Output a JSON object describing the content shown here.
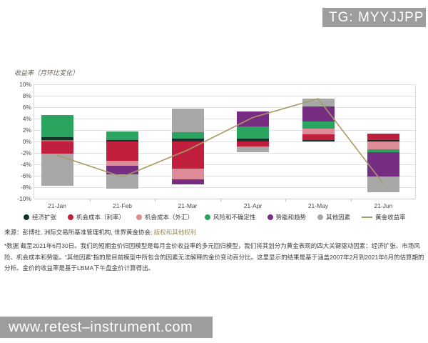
{
  "watermarks": {
    "tg_badge": "TG: MYYJJPP",
    "site_bar": "www.retest–instrument.com"
  },
  "chart": {
    "axis_title": "收益率（月环比变化）"
  },
  "chart_data": {
    "type": "bar",
    "subtype": "stacked-bars-with-line",
    "title": "",
    "ylabel": "收益率（月环比变化）",
    "ylim": [
      -10,
      10
    ],
    "y_tick_step": 2,
    "y_tick_labels": [
      "10%",
      "8%",
      "6%",
      "4%",
      "2%",
      "0%",
      "-2%",
      "-4%",
      "-6%",
      "-8%",
      "-10%"
    ],
    "grid": true,
    "categories": [
      "21-Jan",
      "21-Feb",
      "21-Mar",
      "21-Apr",
      "21-May",
      "21-Jun"
    ],
    "series_colors": {
      "经济扩张": "#12352b",
      "机会成本（利率）": "#c11f3e",
      "机会成本（外汇）": "#dd8b97",
      "风险和不确定性": "#2aa45e",
      "势能和趋势": "#772d82",
      "其他因素": "#a8a8a8"
    },
    "bars": [
      {
        "category": "21-Jan",
        "segments": [
          {
            "series": "机会成本（外汇）",
            "from": 0,
            "to": 0.25,
            "color": "#8f7a63"
          },
          {
            "series": "经济扩张",
            "from": 0.25,
            "to": 0.7
          },
          {
            "series": "风险和不确定性",
            "from": 0.7,
            "to": 4.6
          },
          {
            "series": "机会成本（利率）",
            "from": 0,
            "to": -2.1
          },
          {
            "series": "其他因素",
            "from": -2.1,
            "to": -7.7
          }
        ]
      },
      {
        "category": "21-Feb",
        "segments": [
          {
            "series": "经济扩张",
            "from": 0,
            "to": 0.3
          },
          {
            "series": "风险和不确定性",
            "from": 0.3,
            "to": 1.8
          },
          {
            "series": "机会成本（利率）",
            "from": 0,
            "to": -3.4
          },
          {
            "series": "机会成本（外汇）",
            "from": -3.4,
            "to": -4.3
          },
          {
            "series": "势能和趋势",
            "from": -4.3,
            "to": -5.7
          },
          {
            "series": "其他因素",
            "from": -5.7,
            "to": -8.2
          }
        ]
      },
      {
        "category": "21-Mar",
        "segments": [
          {
            "series": "经济扩张",
            "from": 0,
            "to": 0.55
          },
          {
            "series": "风险和不确定性",
            "from": 0.55,
            "to": 1.65
          },
          {
            "series": "其他因素",
            "from": 1.65,
            "to": 5.8
          },
          {
            "series": "机会成本（利率）",
            "from": 0,
            "to": -4.7
          },
          {
            "series": "机会成本（外汇）",
            "from": -4.7,
            "to": -6.6
          },
          {
            "series": "势能和趋势",
            "from": -6.6,
            "to": -7.5
          }
        ]
      },
      {
        "category": "21-Apr",
        "segments": [
          {
            "series": "经济扩张",
            "from": 0,
            "to": 0.45
          },
          {
            "series": "风险和不确定性",
            "from": 0.45,
            "to": 2.65
          },
          {
            "series": "势能和趋势",
            "from": 2.65,
            "to": 5.25
          },
          {
            "series": "机会成本（利率）",
            "from": 0,
            "to": -0.85
          },
          {
            "series": "其他因素",
            "from": -0.85,
            "to": -1.9
          }
        ]
      },
      {
        "category": "21-May",
        "segments": [
          {
            "series": "经济扩张",
            "from": 0,
            "to": 0.25
          },
          {
            "series": "机会成本（利率）",
            "from": 0.25,
            "to": 1.2
          },
          {
            "series": "机会成本（外汇）",
            "from": 1.2,
            "to": 2.25
          },
          {
            "series": "风险和不确定性",
            "from": 2.25,
            "to": 3.5
          },
          {
            "series": "势能和趋势",
            "from": 3.5,
            "to": 6.1
          },
          {
            "series": "其他因素",
            "from": 6.1,
            "to": 7.5
          }
        ]
      },
      {
        "category": "21-Jun",
        "segments": [
          {
            "series": "经济扩张",
            "from": 0,
            "to": 0.25
          },
          {
            "series": "机会成本（利率）",
            "from": 0.25,
            "to": 1.4
          },
          {
            "series": "机会成本（外汇）",
            "from": 0,
            "to": -1.4
          },
          {
            "series": "风险和不确定性",
            "from": -1.4,
            "to": -1.9
          },
          {
            "series": "势能和趋势",
            "from": -1.9,
            "to": -6.1
          },
          {
            "series": "其他因素",
            "from": -6.1,
            "to": -8.9
          }
        ]
      }
    ],
    "line": {
      "name": "黄金收益率",
      "color": "#a89a64",
      "values": [
        -2.4,
        -6.2,
        -1.5,
        4.2,
        7.5,
        -7.4
      ]
    },
    "legend_position": "bottom"
  },
  "legend": {
    "items": [
      {
        "label": "经济扩张",
        "color": "#12352b",
        "marker": "dot"
      },
      {
        "label": "机会成本（利率）",
        "color": "#c11f3e",
        "marker": "dot"
      },
      {
        "label": "机会成本（外汇）",
        "color": "#dd8b97",
        "marker": "dot"
      },
      {
        "label": "风险和不确定性",
        "color": "#2aa45e",
        "marker": "dot"
      },
      {
        "label": "势能和趋势",
        "color": "#772d82",
        "marker": "dot"
      },
      {
        "label": "其他因素",
        "color": "#a8a8a8",
        "marker": "dot"
      },
      {
        "label": "黄金收益率",
        "color": "#a89a64",
        "marker": "line"
      }
    ]
  },
  "source": {
    "prefix": "来源：",
    "text": "彭博社, 洲际交易所基准管理机构, 世界黄金协会; ",
    "rights_link": "版权和其他权利"
  },
  "footnote": {
    "lines": [
      "*数据 截至2021年6月30日。我们的短期金价归因模型是每月金价收益率的多元回归模型，我们将其划分为黄金表现的四大关键驱动因素：经济扩张、市场风",
      "险、机会成本和势能。“其他因素”指的是目前模型中所包含的因素无法解释的金价变动百分比。这里显示的结果是基于涵盖2007年2月到2021年6月的估算期的",
      "分析。金价的收益率是基于LBMA下午盘金价计算得出。"
    ]
  }
}
